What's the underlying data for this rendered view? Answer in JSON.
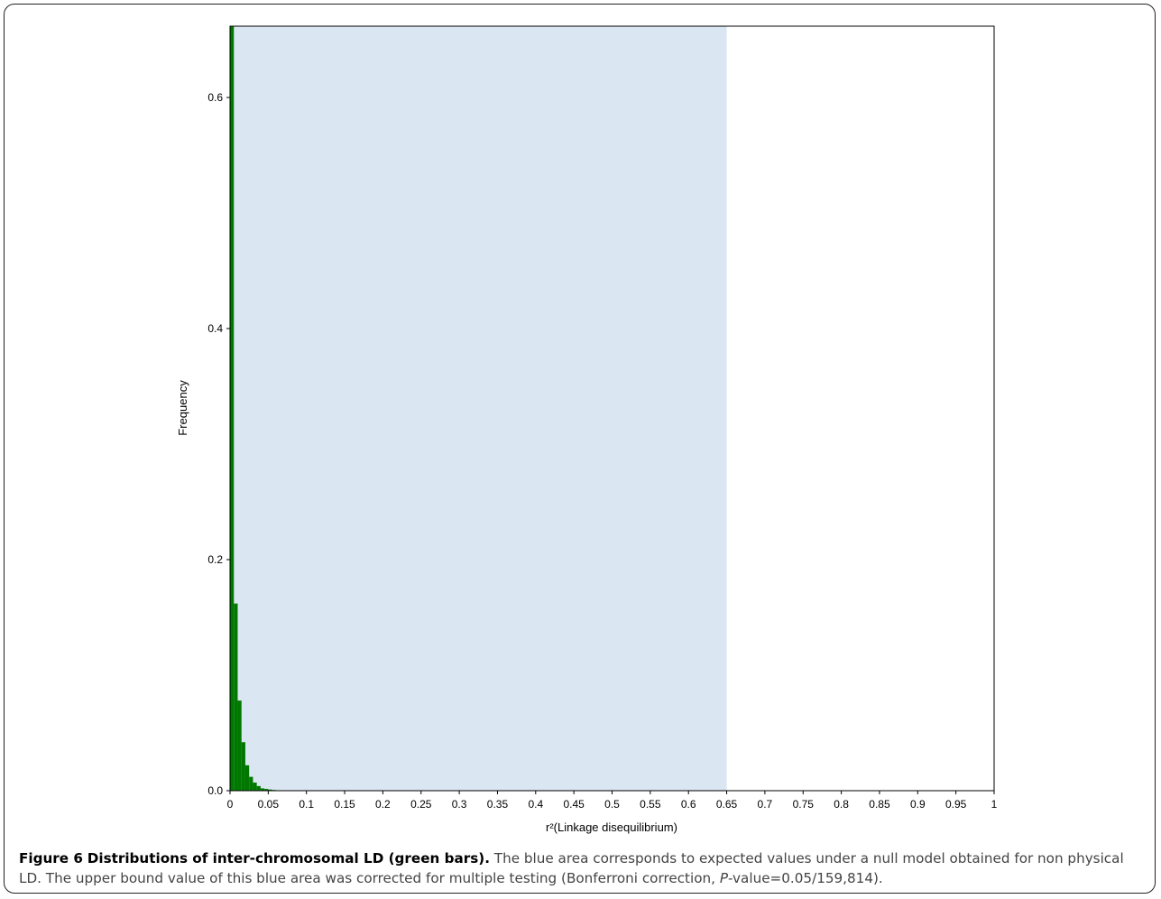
{
  "chart_data": {
    "type": "bar",
    "title": "",
    "xlabel": "r²(Linkage disequilibrium)",
    "ylabel": "Frequency",
    "xlim": [
      0,
      1
    ],
    "ylim": [
      0,
      0.6
    ],
    "x_ticks": [
      "0",
      "0.05",
      "0.1",
      "0.15",
      "0.2",
      "0.25",
      "0.3",
      "0.35",
      "0.4",
      "0.45",
      "0.5",
      "0.55",
      "0.6",
      "0.65",
      "0.7",
      "0.75",
      "0.8",
      "0.85",
      "0.9",
      "0.95",
      "1"
    ],
    "y_ticks": [
      "0.0",
      "0.2",
      "0.4",
      "0.6"
    ],
    "bin_width": 0.005,
    "bins_start": [
      0.0,
      0.005,
      0.01,
      0.015,
      0.02,
      0.025,
      0.03,
      0.035,
      0.04,
      0.045,
      0.05,
      0.055,
      0.06
    ],
    "values": [
      0.9,
      0.162,
      0.078,
      0.042,
      0.022,
      0.012,
      0.007,
      0.004,
      0.002,
      0.0015,
      0.001,
      0.0006,
      0.0004
    ],
    "bar_color": "#007800",
    "null_region": {
      "from": 0,
      "to": 0.65,
      "color": "#dae6f1"
    },
    "grid": false,
    "legend": "none"
  },
  "caption": {
    "label": "Figure 6",
    "title": "Distributions of inter-chromosomal LD (green bars).",
    "text_1": "The blue area corresponds to expected values under a null model obtained for non physical LD. The upper bound value of this blue area was corrected for multiple testing (Bonferroni correction, ",
    "p_italic": "P",
    "text_2": "-value=0.05/159,814)."
  }
}
